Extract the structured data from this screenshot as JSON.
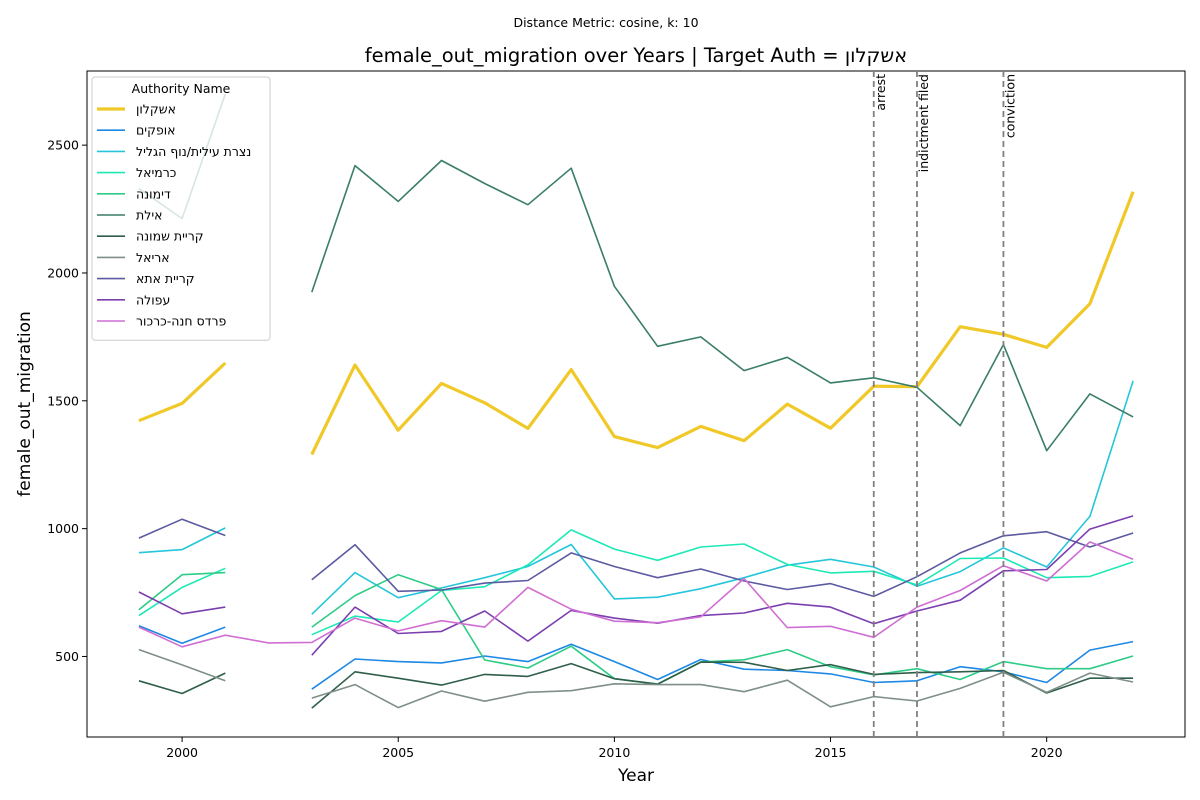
{
  "chart_data": {
    "type": "line",
    "suptitle": "Distance Metric: cosine, k: 10",
    "title": "female_out_migration over Years | Target Auth = אשקלון",
    "xlabel": "Year",
    "ylabel": "female_out_migration",
    "xlim": [
      1997.8,
      2023.2
    ],
    "ylim": [
      185,
      2790
    ],
    "xticks": [
      2000,
      2005,
      2010,
      2015,
      2020
    ],
    "yticks": [
      500,
      1000,
      1500,
      2000,
      2500
    ],
    "legend_title": "Authority Name",
    "legend_position": "upper-left",
    "years": [
      1999,
      2000,
      2001,
      2002,
      2003,
      2004,
      2005,
      2006,
      2007,
      2008,
      2009,
      2010,
      2011,
      2012,
      2013,
      2014,
      2015,
      2016,
      2017,
      2018,
      2019,
      2020,
      2021,
      2022
    ],
    "series": [
      {
        "name": "אשקלון",
        "color": "#f0c929",
        "width": 3.2,
        "values": [
          1422,
          1490,
          1648,
          null,
          1290,
          1640,
          1385,
          1568,
          1492,
          1392,
          1622,
          1360,
          1317,
          1400,
          1344,
          1487,
          1393,
          1557,
          1555,
          1790,
          1760,
          1709,
          1880,
          2318
        ]
      },
      {
        "name": "אופקים",
        "color": "#1e88e5",
        "width": 1.6,
        "values": [
          620,
          552,
          615,
          null,
          372,
          490,
          480,
          475,
          502,
          480,
          548,
          480,
          410,
          488,
          450,
          445,
          432,
          398,
          405,
          460,
          440,
          398,
          525,
          558
        ]
      },
      {
        "name": "נצרת עילית/נוף הגליל",
        "color": "#26c6da",
        "width": 1.6,
        "values": [
          906,
          918,
          1003,
          null,
          665,
          828,
          730,
          768,
          808,
          852,
          938,
          725,
          732,
          765,
          808,
          857,
          880,
          850,
          775,
          832,
          925,
          850,
          1048,
          1578
        ]
      },
      {
        "name": "כרמיאל",
        "color": "#1de9b6",
        "width": 1.6,
        "values": [
          660,
          770,
          845,
          null,
          585,
          658,
          635,
          758,
          773,
          858,
          995,
          920,
          876,
          928,
          940,
          860,
          827,
          833,
          780,
          883,
          885,
          808,
          813,
          870
        ]
      },
      {
        "name": "דימונה",
        "color": "#2ecc87",
        "width": 1.6,
        "values": [
          683,
          820,
          828,
          null,
          615,
          738,
          820,
          762,
          486,
          455,
          540,
          413,
          392,
          478,
          487,
          527,
          460,
          428,
          452,
          410,
          480,
          452,
          452,
          502
        ]
      },
      {
        "name": "אילת",
        "color": "#3a7d6a",
        "width": 1.6,
        "values": [
          2330,
          2213,
          2700,
          null,
          1925,
          2420,
          2280,
          2440,
          2350,
          2267,
          2410,
          1948,
          1713,
          1750,
          1618,
          1670,
          1570,
          1590,
          1553,
          1403,
          1720,
          1305,
          1527,
          1437
        ]
      },
      {
        "name": "קריית שמונה",
        "color": "#2f5f4a",
        "width": 1.6,
        "values": [
          405,
          355,
          435,
          null,
          298,
          440,
          415,
          388,
          430,
          422,
          472,
          413,
          392,
          478,
          477,
          445,
          468,
          430,
          437,
          440,
          445,
          357,
          415,
          415
        ]
      },
      {
        "name": "אריאל",
        "color": "#7f8f88",
        "width": 1.6,
        "values": [
          527,
          467,
          405,
          null,
          337,
          390,
          300,
          365,
          325,
          360,
          366,
          393,
          390,
          390,
          362,
          407,
          303,
          343,
          326,
          375,
          438,
          360,
          435,
          400
        ]
      },
      {
        "name": "קריית אתא",
        "color": "#5c5aa0",
        "width": 1.6,
        "values": [
          963,
          1037,
          973,
          null,
          800,
          937,
          755,
          760,
          787,
          797,
          905,
          852,
          808,
          842,
          795,
          762,
          785,
          735,
          812,
          905,
          972,
          988,
          928,
          983
        ]
      },
      {
        "name": "עפולה",
        "color": "#7b3fb0",
        "width": 1.6,
        "values": [
          752,
          667,
          693,
          null,
          505,
          693,
          590,
          598,
          678,
          560,
          680,
          650,
          630,
          660,
          670,
          708,
          693,
          628,
          678,
          720,
          835,
          840,
          998,
          1050
        ]
      },
      {
        "name": "פרדס חנה-כרכור",
        "color": "#cf6fd3",
        "width": 1.6,
        "values": [
          615,
          538,
          583,
          553,
          555,
          650,
          600,
          640,
          615,
          770,
          685,
          638,
          632,
          655,
          805,
          613,
          618,
          575,
          693,
          758,
          855,
          795,
          948,
          880
        ]
      }
    ],
    "events": [
      {
        "label": "arrest",
        "x": 2016
      },
      {
        "label": "indictment filed",
        "x": 2017
      },
      {
        "label": "conviction",
        "x": 2019
      }
    ]
  }
}
